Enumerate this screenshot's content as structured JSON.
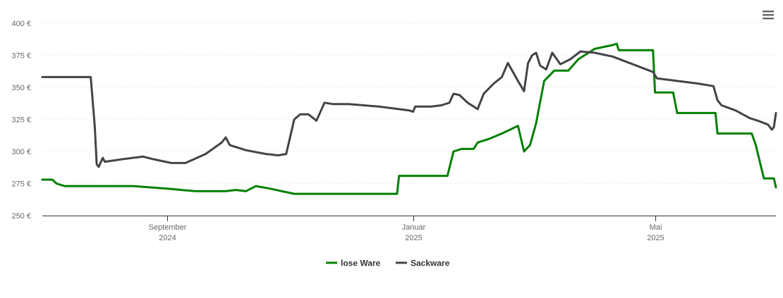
{
  "menu": {
    "icon": "hamburger-menu-icon"
  },
  "chart_data": {
    "type": "line",
    "title": "",
    "xlabel": "",
    "ylabel": "",
    "ylim": [
      250,
      400
    ],
    "y_ticks": [
      {
        "value": 250,
        "label": "250 €"
      },
      {
        "value": 275,
        "label": "275 €"
      },
      {
        "value": 300,
        "label": "300 €"
      },
      {
        "value": 325,
        "label": "325 €"
      },
      {
        "value": 350,
        "label": "350 €"
      },
      {
        "value": 375,
        "label": "375 €"
      },
      {
        "value": 400,
        "label": "400 €"
      }
    ],
    "x_range": [
      "2024-07-01",
      "2025-06-30"
    ],
    "x_ticks": [
      {
        "date": "2024-09-01",
        "label_month": "September",
        "label_year": "2024"
      },
      {
        "date": "2025-01-01",
        "label_month": "Januar",
        "label_year": "2025"
      },
      {
        "date": "2025-05-01",
        "label_month": "Mai",
        "label_year": "2025"
      }
    ],
    "grid": true,
    "legend_position": "bottom-center",
    "series": [
      {
        "name": "lose Ware",
        "color": "#008000",
        "points": [
          [
            "2024-07-01",
            278
          ],
          [
            "2024-07-06",
            278
          ],
          [
            "2024-07-08",
            275
          ],
          [
            "2024-07-12",
            273
          ],
          [
            "2024-08-15",
            273
          ],
          [
            "2024-09-01",
            271
          ],
          [
            "2024-09-15",
            269
          ],
          [
            "2024-09-30",
            269
          ],
          [
            "2024-10-05",
            270
          ],
          [
            "2024-10-10",
            269
          ],
          [
            "2024-10-15",
            273
          ],
          [
            "2024-10-22",
            271
          ],
          [
            "2024-11-03",
            267
          ],
          [
            "2024-12-24",
            267
          ],
          [
            "2024-12-25",
            281
          ],
          [
            "2025-01-18",
            281
          ],
          [
            "2025-01-21",
            300
          ],
          [
            "2025-01-25",
            302
          ],
          [
            "2025-01-31",
            302
          ],
          [
            "2025-02-02",
            307
          ],
          [
            "2025-02-08",
            310
          ],
          [
            "2025-02-14",
            314
          ],
          [
            "2025-02-18",
            317
          ],
          [
            "2025-02-22",
            320
          ],
          [
            "2025-02-25",
            300
          ],
          [
            "2025-02-28",
            305
          ],
          [
            "2025-03-03",
            322
          ],
          [
            "2025-03-07",
            355
          ],
          [
            "2025-03-12",
            363
          ],
          [
            "2025-03-19",
            363
          ],
          [
            "2025-03-24",
            372
          ],
          [
            "2025-04-01",
            380
          ],
          [
            "2025-04-10",
            383
          ],
          [
            "2025-04-12",
            384
          ],
          [
            "2025-04-13",
            379
          ],
          [
            "2025-04-30",
            379
          ],
          [
            "2025-05-01",
            346
          ],
          [
            "2025-05-10",
            346
          ],
          [
            "2025-05-12",
            330
          ],
          [
            "2025-05-31",
            330
          ],
          [
            "2025-06-01",
            314
          ],
          [
            "2025-06-18",
            314
          ],
          [
            "2025-06-20",
            305
          ],
          [
            "2025-06-24",
            279
          ],
          [
            "2025-06-29",
            279
          ],
          [
            "2025-06-30",
            272
          ]
        ]
      },
      {
        "name": "Sackware",
        "color": "#434348",
        "points": [
          [
            "2024-07-01",
            358
          ],
          [
            "2024-07-25",
            358
          ],
          [
            "2024-07-27",
            320
          ],
          [
            "2024-07-28",
            290
          ],
          [
            "2024-07-29",
            288
          ],
          [
            "2024-07-31",
            295
          ],
          [
            "2024-08-01",
            292
          ],
          [
            "2024-08-10",
            294
          ],
          [
            "2024-08-20",
            296
          ],
          [
            "2024-08-25",
            294
          ],
          [
            "2024-09-03",
            291
          ],
          [
            "2024-09-10",
            291
          ],
          [
            "2024-09-20",
            298
          ],
          [
            "2024-09-28",
            307
          ],
          [
            "2024-09-30",
            311
          ],
          [
            "2024-10-02",
            305
          ],
          [
            "2024-10-10",
            301
          ],
          [
            "2024-10-20",
            298
          ],
          [
            "2024-10-26",
            297
          ],
          [
            "2024-10-30",
            298
          ],
          [
            "2024-11-03",
            325
          ],
          [
            "2024-11-06",
            329
          ],
          [
            "2024-11-10",
            329
          ],
          [
            "2024-11-14",
            324
          ],
          [
            "2024-11-18",
            338
          ],
          [
            "2024-11-22",
            337
          ],
          [
            "2024-11-30",
            337
          ],
          [
            "2024-12-15",
            335
          ],
          [
            "2024-12-30",
            332
          ],
          [
            "2025-01-01",
            331
          ],
          [
            "2025-01-02",
            335
          ],
          [
            "2025-01-10",
            335
          ],
          [
            "2025-01-15",
            336
          ],
          [
            "2025-01-19",
            338
          ],
          [
            "2025-01-21",
            345
          ],
          [
            "2025-01-24",
            344
          ],
          [
            "2025-01-28",
            338
          ],
          [
            "2025-02-02",
            333
          ],
          [
            "2025-02-05",
            345
          ],
          [
            "2025-02-10",
            353
          ],
          [
            "2025-02-14",
            358
          ],
          [
            "2025-02-17",
            369
          ],
          [
            "2025-02-22",
            355
          ],
          [
            "2025-02-25",
            347
          ],
          [
            "2025-02-27",
            369
          ],
          [
            "2025-03-01",
            375
          ],
          [
            "2025-03-03",
            377
          ],
          [
            "2025-03-05",
            367
          ],
          [
            "2025-03-08",
            364
          ],
          [
            "2025-03-11",
            377
          ],
          [
            "2025-03-15",
            368
          ],
          [
            "2025-03-20",
            372
          ],
          [
            "2025-03-25",
            378
          ],
          [
            "2025-04-01",
            377
          ],
          [
            "2025-04-10",
            374
          ],
          [
            "2025-04-20",
            368
          ],
          [
            "2025-04-30",
            362
          ],
          [
            "2025-05-02",
            357
          ],
          [
            "2025-05-12",
            355
          ],
          [
            "2025-05-22",
            353
          ],
          [
            "2025-05-30",
            351
          ],
          [
            "2025-06-01",
            340
          ],
          [
            "2025-06-03",
            336
          ],
          [
            "2025-06-10",
            332
          ],
          [
            "2025-06-17",
            326
          ],
          [
            "2025-06-21",
            324
          ],
          [
            "2025-06-26",
            321
          ],
          [
            "2025-06-28",
            317
          ],
          [
            "2025-06-29",
            319
          ],
          [
            "2025-06-30",
            330
          ]
        ]
      }
    ]
  }
}
